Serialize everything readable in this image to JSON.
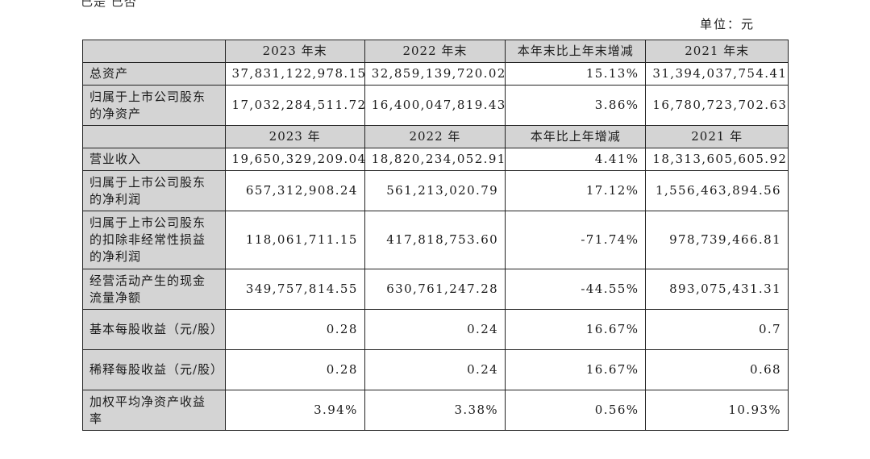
{
  "fragment_text": "已是 已否",
  "unit": "单位：元",
  "balance": {
    "headers": [
      "",
      "2023 年末",
      "2022 年末",
      "本年末比上年末增减",
      "2021 年末"
    ],
    "rows": [
      {
        "label": "总资产",
        "values": [
          "37,831,122,978.15",
          "32,859,139,720.02",
          "15.13%",
          "31,394,037,754.41"
        ]
      },
      {
        "label": "归属于上市公司股东的净资产",
        "values": [
          "17,032,284,511.72",
          "16,400,047,819.43",
          "3.86%",
          "16,780,723,702.63"
        ]
      }
    ]
  },
  "income": {
    "headers": [
      "",
      "2023 年",
      "2022 年",
      "本年比上年增减",
      "2021 年"
    ],
    "rows": [
      {
        "label": "营业收入",
        "values": [
          "19,650,329,209.04",
          "18,820,234,052.91",
          "4.41%",
          "18,313,605,605.92"
        ]
      },
      {
        "label": "归属于上市公司股东的净利润",
        "values": [
          "657,312,908.24",
          "561,213,020.79",
          "17.12%",
          "1,556,463,894.56"
        ]
      },
      {
        "label": "归属于上市公司股东的扣除非经常性损益的净利润",
        "values": [
          "118,061,711.15",
          "417,818,753.60",
          "-71.74%",
          "978,739,466.81"
        ]
      },
      {
        "label": "经营活动产生的现金流量净额",
        "values": [
          "349,757,814.55",
          "630,761,247.28",
          "-44.55%",
          "893,075,431.31"
        ]
      },
      {
        "label": "基本每股收益（元/股）",
        "values": [
          "0.28",
          "0.24",
          "16.67%",
          "0.7"
        ]
      },
      {
        "label": "稀释每股收益（元/股）",
        "values": [
          "0.28",
          "0.24",
          "16.67%",
          "0.68"
        ]
      },
      {
        "label": "加权平均净资产收益率",
        "values": [
          "3.94%",
          "3.38%",
          "0.56%",
          "10.93%"
        ]
      }
    ]
  }
}
